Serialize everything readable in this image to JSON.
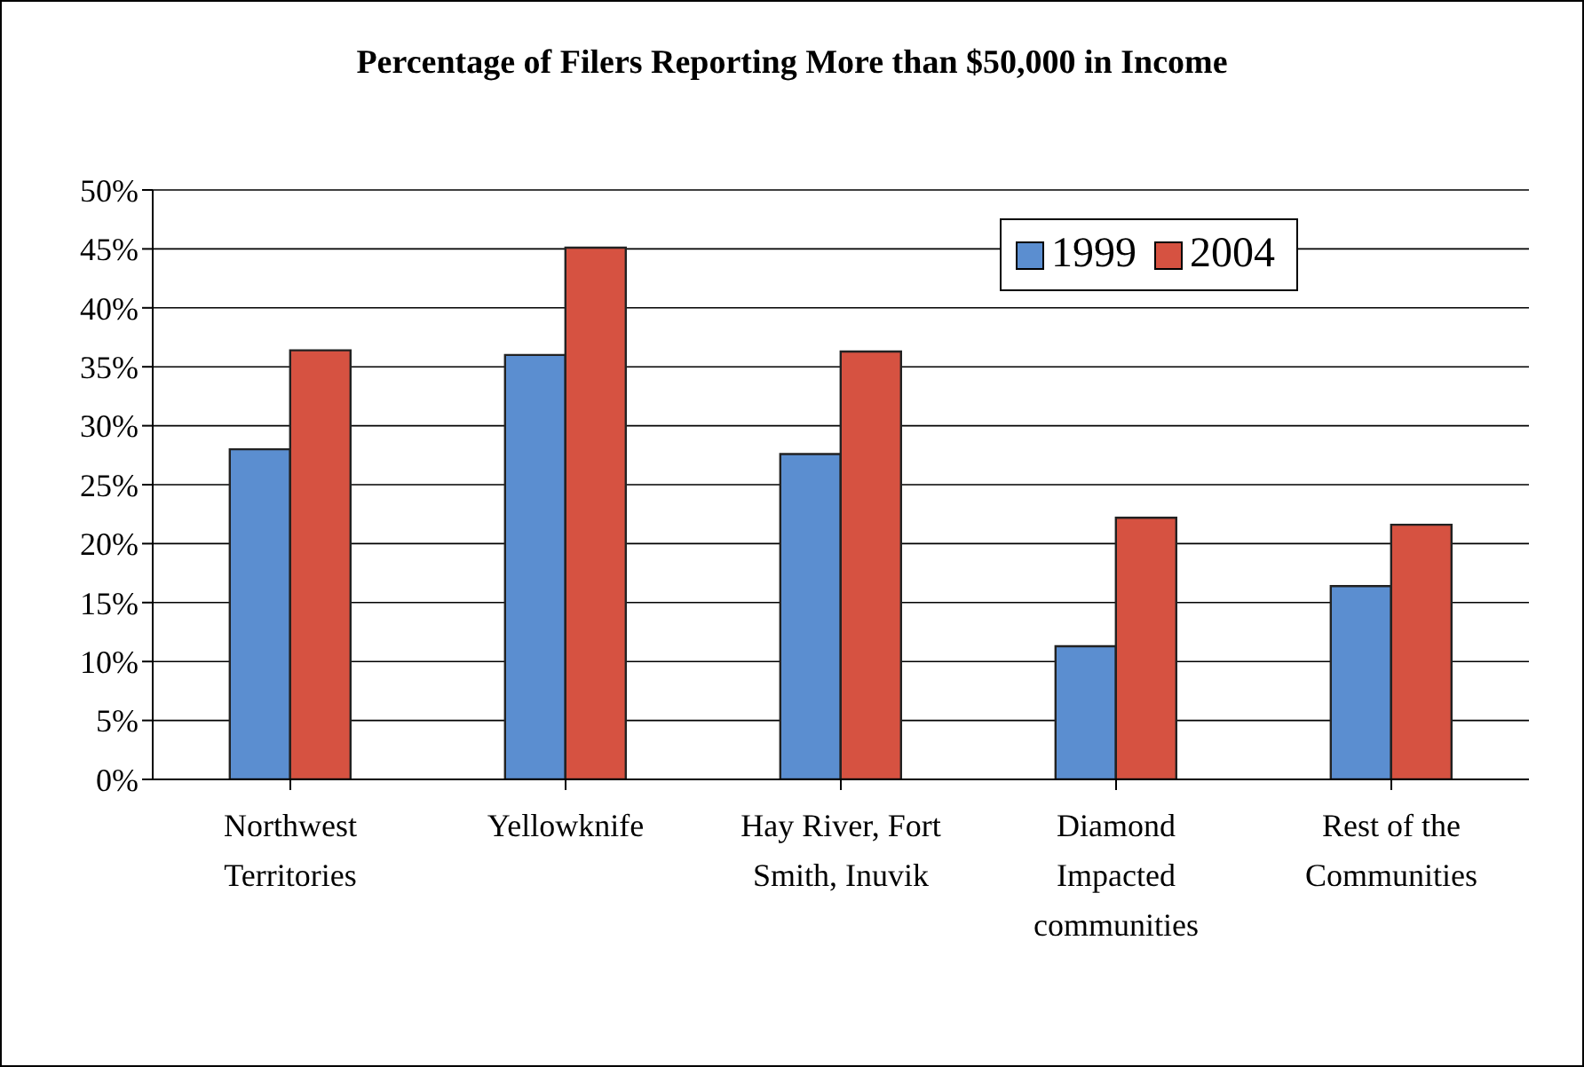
{
  "chart_data": {
    "type": "bar",
    "title": "Percentage of Filers Reporting More than $50,000 in Income",
    "categories": [
      "Northwest Territories",
      "Yellowknife",
      "Hay River, Fort Smith, Inuvik",
      "Diamond Impacted communities",
      "Rest of the Communities"
    ],
    "series": [
      {
        "name": "1999",
        "color": "#5b8ed0",
        "values": [
          28.0,
          36.0,
          27.6,
          11.3,
          16.4
        ]
      },
      {
        "name": "2004",
        "color": "#d65241",
        "values": [
          36.4,
          45.1,
          36.3,
          22.2,
          21.6
        ]
      }
    ],
    "ylim": [
      0,
      50
    ],
    "yticks": [
      {
        "value": 0,
        "label": "0%"
      },
      {
        "value": 5,
        "label": "5%"
      },
      {
        "value": 10,
        "label": "10%"
      },
      {
        "value": 15,
        "label": "15%"
      },
      {
        "value": 20,
        "label": "20%"
      },
      {
        "value": 25,
        "label": "25%"
      },
      {
        "value": 30,
        "label": "30%"
      },
      {
        "value": 35,
        "label": "35%"
      },
      {
        "value": 40,
        "label": "40%"
      },
      {
        "value": 45,
        "label": "45%"
      },
      {
        "value": 50,
        "label": "50%"
      }
    ],
    "grid": "y",
    "legend": "top right"
  }
}
